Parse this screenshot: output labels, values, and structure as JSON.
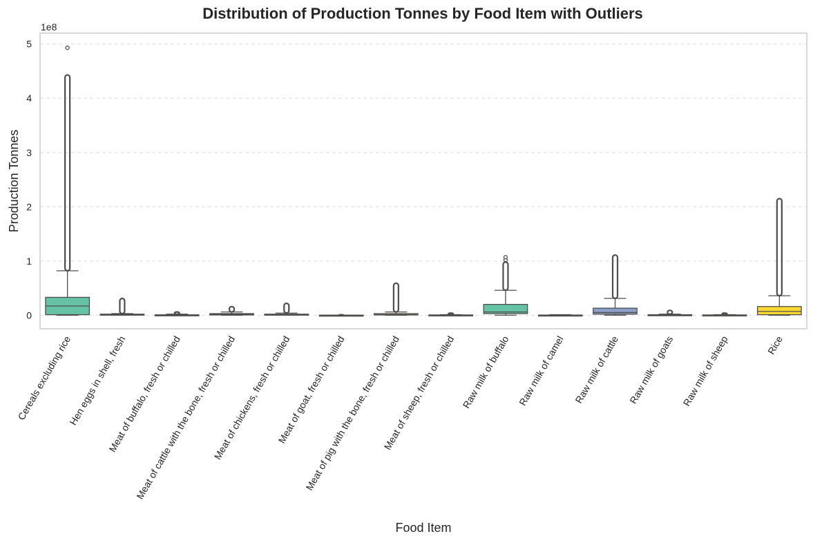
{
  "chart_data": {
    "type": "box",
    "title": "Distribution of Production Tonnes by Food Item with Outliers",
    "xlabel": "Food Item",
    "ylabel": "Production Tonnes",
    "y_offset_label": "1e8",
    "y_scale_factor": 100000000,
    "ylim": [
      -0.25,
      5.2
    ],
    "yticks": [
      0,
      1,
      2,
      3,
      4,
      5
    ],
    "grid": "horizontal dashed",
    "categories": [
      "Cereals excluding rice",
      "Hen eggs in shell, fresh",
      "Meat of buffalo, fresh or chilled",
      "Meat of cattle with the bone, fresh or chilled",
      "Meat of chickens, fresh or chilled",
      "Meat of goat, fresh or chilled",
      "Meat of pig with the bone, fresh or chilled",
      "Meat of sheep, fresh or chilled",
      "Raw milk of buffalo",
      "Raw milk of camel",
      "Raw milk of cattle",
      "Raw milk of goats",
      "Raw milk of sheep",
      "Rice"
    ],
    "boxes": [
      {
        "min": 0.0,
        "q1": 0.01,
        "median": 0.17,
        "q3": 0.33,
        "max": 0.82,
        "outlier_range": [
          0.82,
          4.43
        ],
        "outliers": [
          4.93
        ],
        "color": "#66c2a5"
      },
      {
        "min": 0.0,
        "q1": 0.003,
        "median": 0.01,
        "q3": 0.02,
        "max": 0.03,
        "outlier_range": [
          0.03,
          0.31
        ],
        "outliers": [],
        "color": "#fc8d62"
      },
      {
        "min": 0.0,
        "q1": 0.001,
        "median": 0.003,
        "q3": 0.008,
        "max": 0.02,
        "outlier_range": [
          0.02,
          0.06
        ],
        "outliers": [],
        "color": "#8da0cb"
      },
      {
        "min": 0.0,
        "q1": 0.005,
        "median": 0.015,
        "q3": 0.03,
        "max": 0.06,
        "outlier_range": [
          0.06,
          0.16
        ],
        "outliers": [],
        "color": "#e78ac3"
      },
      {
        "min": 0.0,
        "q1": 0.002,
        "median": 0.008,
        "q3": 0.02,
        "max": 0.04,
        "outlier_range": [
          0.04,
          0.22
        ],
        "outliers": [],
        "color": "#a6d854"
      },
      {
        "min": 0.0,
        "q1": 0.0005,
        "median": 0.001,
        "q3": 0.002,
        "max": 0.003,
        "outlier_range": [
          0.003,
          0.01
        ],
        "outliers": [],
        "color": "#ffd92f"
      },
      {
        "min": 0.0,
        "q1": 0.005,
        "median": 0.01,
        "q3": 0.03,
        "max": 0.06,
        "outlier_range": [
          0.06,
          0.59
        ],
        "outliers": [],
        "color": "#e5c494"
      },
      {
        "min": 0.0,
        "q1": 0.001,
        "median": 0.003,
        "q3": 0.006,
        "max": 0.01,
        "outlier_range": [
          0.01,
          0.04
        ],
        "outliers": [],
        "color": "#b3b3b3"
      },
      {
        "min": 0.0,
        "q1": 0.03,
        "median": 0.06,
        "q3": 0.2,
        "max": 0.46,
        "outlier_range": [
          0.46,
          0.98
        ],
        "outliers": [
          1.02,
          1.07
        ],
        "color": "#66c2a5"
      },
      {
        "min": 0.0,
        "q1": 0.001,
        "median": 0.002,
        "q3": 0.004,
        "max": 0.01,
        "outlier_range": [
          0.01,
          0.01
        ],
        "outliers": [],
        "color": "#fc8d62"
      },
      {
        "min": 0.0,
        "q1": 0.02,
        "median": 0.05,
        "q3": 0.13,
        "max": 0.31,
        "outlier_range": [
          0.31,
          1.11
        ],
        "outliers": [],
        "color": "#8da0cb"
      },
      {
        "min": 0.0,
        "q1": 0.002,
        "median": 0.005,
        "q3": 0.01,
        "max": 0.02,
        "outlier_range": [
          0.02,
          0.09
        ],
        "outliers": [],
        "color": "#e78ac3"
      },
      {
        "min": 0.0,
        "q1": 0.001,
        "median": 0.003,
        "q3": 0.006,
        "max": 0.01,
        "outlier_range": [
          0.01,
          0.04
        ],
        "outliers": [],
        "color": "#a6d854"
      },
      {
        "min": 0.0,
        "q1": 0.01,
        "median": 0.07,
        "q3": 0.16,
        "max": 0.36,
        "outlier_range": [
          0.36,
          2.15
        ],
        "outliers": [],
        "color": "#ffd92f"
      }
    ]
  }
}
